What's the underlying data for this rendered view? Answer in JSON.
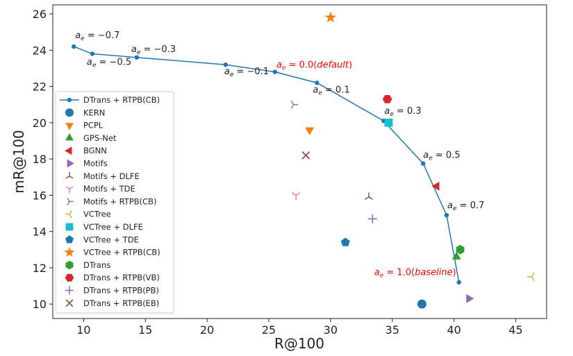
{
  "chart_data": {
    "type": "scatter",
    "xlabel": "R@100",
    "ylabel": "mR@100",
    "xlim": [
      7.5,
      47.5
    ],
    "ylim": [
      9.2,
      26.5
    ],
    "xticks": [
      10,
      15,
      20,
      25,
      30,
      35,
      40,
      45
    ],
    "yticks": [
      10,
      12,
      14,
      16,
      18,
      20,
      22,
      24,
      26
    ],
    "xtick_labels": [
      "10",
      "15",
      "20",
      "25",
      "30",
      "35",
      "40",
      "45"
    ],
    "ytick_labels": [
      "10",
      "12",
      "14",
      "16",
      "18",
      "20",
      "22",
      "24",
      "26"
    ],
    "legend_position": "lower-left",
    "line_series": {
      "name": "DTrans + RTPB(CB)",
      "color": "#1f77b4",
      "x": [
        9.2,
        10.7,
        14.3,
        21.5,
        25.5,
        28.9,
        34.3,
        37.5,
        39.4,
        40.4
      ],
      "y": [
        24.2,
        23.8,
        23.6,
        23.2,
        22.8,
        22.2,
        20.1,
        17.75,
        14.9,
        11.2
      ]
    },
    "series": [
      {
        "name": "KERN",
        "marker": "circle",
        "color": "#1f77b4",
        "x": [
          37.4
        ],
        "y": [
          10.0
        ]
      },
      {
        "name": "PCPL",
        "marker": "triangle-down",
        "color": "#ff7f0e",
        "x": [
          28.3
        ],
        "y": [
          19.6
        ]
      },
      {
        "name": "GPS-Net",
        "marker": "triangle-up",
        "color": "#2ca02c",
        "x": [
          40.2
        ],
        "y": [
          12.6
        ]
      },
      {
        "name": "BGNN",
        "marker": "triangle-left",
        "color": "#d62728",
        "x": [
          38.6
        ],
        "y": [
          16.5
        ]
      },
      {
        "name": "Motifs",
        "marker": "triangle-right",
        "color": "#9467bd",
        "x": [
          41.2
        ],
        "y": [
          10.3
        ]
      },
      {
        "name": "Motifs + DLFE",
        "marker": "tri-down",
        "color": "#8c564b",
        "x": [
          33.1
        ],
        "y": [
          15.9
        ]
      },
      {
        "name": "Motifs + TDE",
        "marker": "tri-up",
        "color": "#e377c2",
        "x": [
          27.2
        ],
        "y": [
          16.0
        ]
      },
      {
        "name": "Motifs + RTPB(CB)",
        "marker": "tri-left",
        "color": "#7f7f7f",
        "x": [
          27.0
        ],
        "y": [
          21.0
        ]
      },
      {
        "name": "VCTree",
        "marker": "tri-right",
        "color": "#bcbd22",
        "x": [
          46.3
        ],
        "y": [
          11.5
        ]
      },
      {
        "name": "VCTree + DLFE",
        "marker": "square",
        "color": "#17becf",
        "x": [
          34.7
        ],
        "y": [
          20.0
        ]
      },
      {
        "name": "VCTree + TDE",
        "marker": "pentagon",
        "color": "#1f77b4",
        "x": [
          31.2
        ],
        "y": [
          13.4
        ]
      },
      {
        "name": "VCTree + RTPB(CB)",
        "marker": "star",
        "color": "#ff7f0e",
        "x": [
          30.0
        ],
        "y": [
          25.8
        ]
      },
      {
        "name": "DTrans",
        "marker": "hexagon",
        "color": "#2ca02c",
        "x": [
          40.5
        ],
        "y": [
          13.0
        ]
      },
      {
        "name": "DTrans + RTPB(VB)",
        "marker": "hexagon2",
        "color": "#d62728",
        "x": [
          34.6
        ],
        "y": [
          21.3
        ]
      },
      {
        "name": "DTrans + RTPB(PB)",
        "marker": "plus",
        "color": "#9467bd",
        "x": [
          33.4
        ],
        "y": [
          14.7
        ]
      },
      {
        "name": "DTrans + RTPB(EB)",
        "marker": "x",
        "color": "#8c564b",
        "x": [
          28.0
        ],
        "y": [
          18.2
        ]
      }
    ],
    "annotations": [
      {
        "label": "a",
        "sub": "e",
        "rest": " = −0.7",
        "x": 9.2,
        "y": 24.2,
        "color": "#222222"
      },
      {
        "label": "a",
        "sub": "e",
        "rest": " = −0.5",
        "x": 10.7,
        "y": 23.8,
        "color": "#222222"
      },
      {
        "label": "a",
        "sub": "e",
        "rest": " = −0.3",
        "x": 14.3,
        "y": 23.6,
        "color": "#222222"
      },
      {
        "label": "a",
        "sub": "e",
        "rest": " = −0.1",
        "x": 21.5,
        "y": 23.2,
        "color": "#222222"
      },
      {
        "label": "a",
        "sub": "e",
        "rest": " = 0.0(",
        "italic": "default",
        "close": ")",
        "x": 25.5,
        "y": 22.8,
        "color": "#ff0000"
      },
      {
        "label": "a",
        "sub": "e",
        "rest": " = 0.1",
        "x": 28.9,
        "y": 22.2,
        "color": "#222222"
      },
      {
        "label": "a",
        "sub": "e",
        "rest": " = 0.3",
        "x": 34.3,
        "y": 20.1,
        "color": "#222222"
      },
      {
        "label": "a",
        "sub": "e",
        "rest": " = 0.5",
        "x": 37.5,
        "y": 17.75,
        "color": "#222222"
      },
      {
        "label": "a",
        "sub": "e",
        "rest": " = 0.7",
        "x": 39.4,
        "y": 14.9,
        "color": "#222222"
      },
      {
        "label": "a",
        "sub": "e",
        "rest": " = 1.0(",
        "italic": "baseline",
        "close": ")",
        "x": 40.4,
        "y": 11.2,
        "color": "#ff0000"
      }
    ]
  }
}
